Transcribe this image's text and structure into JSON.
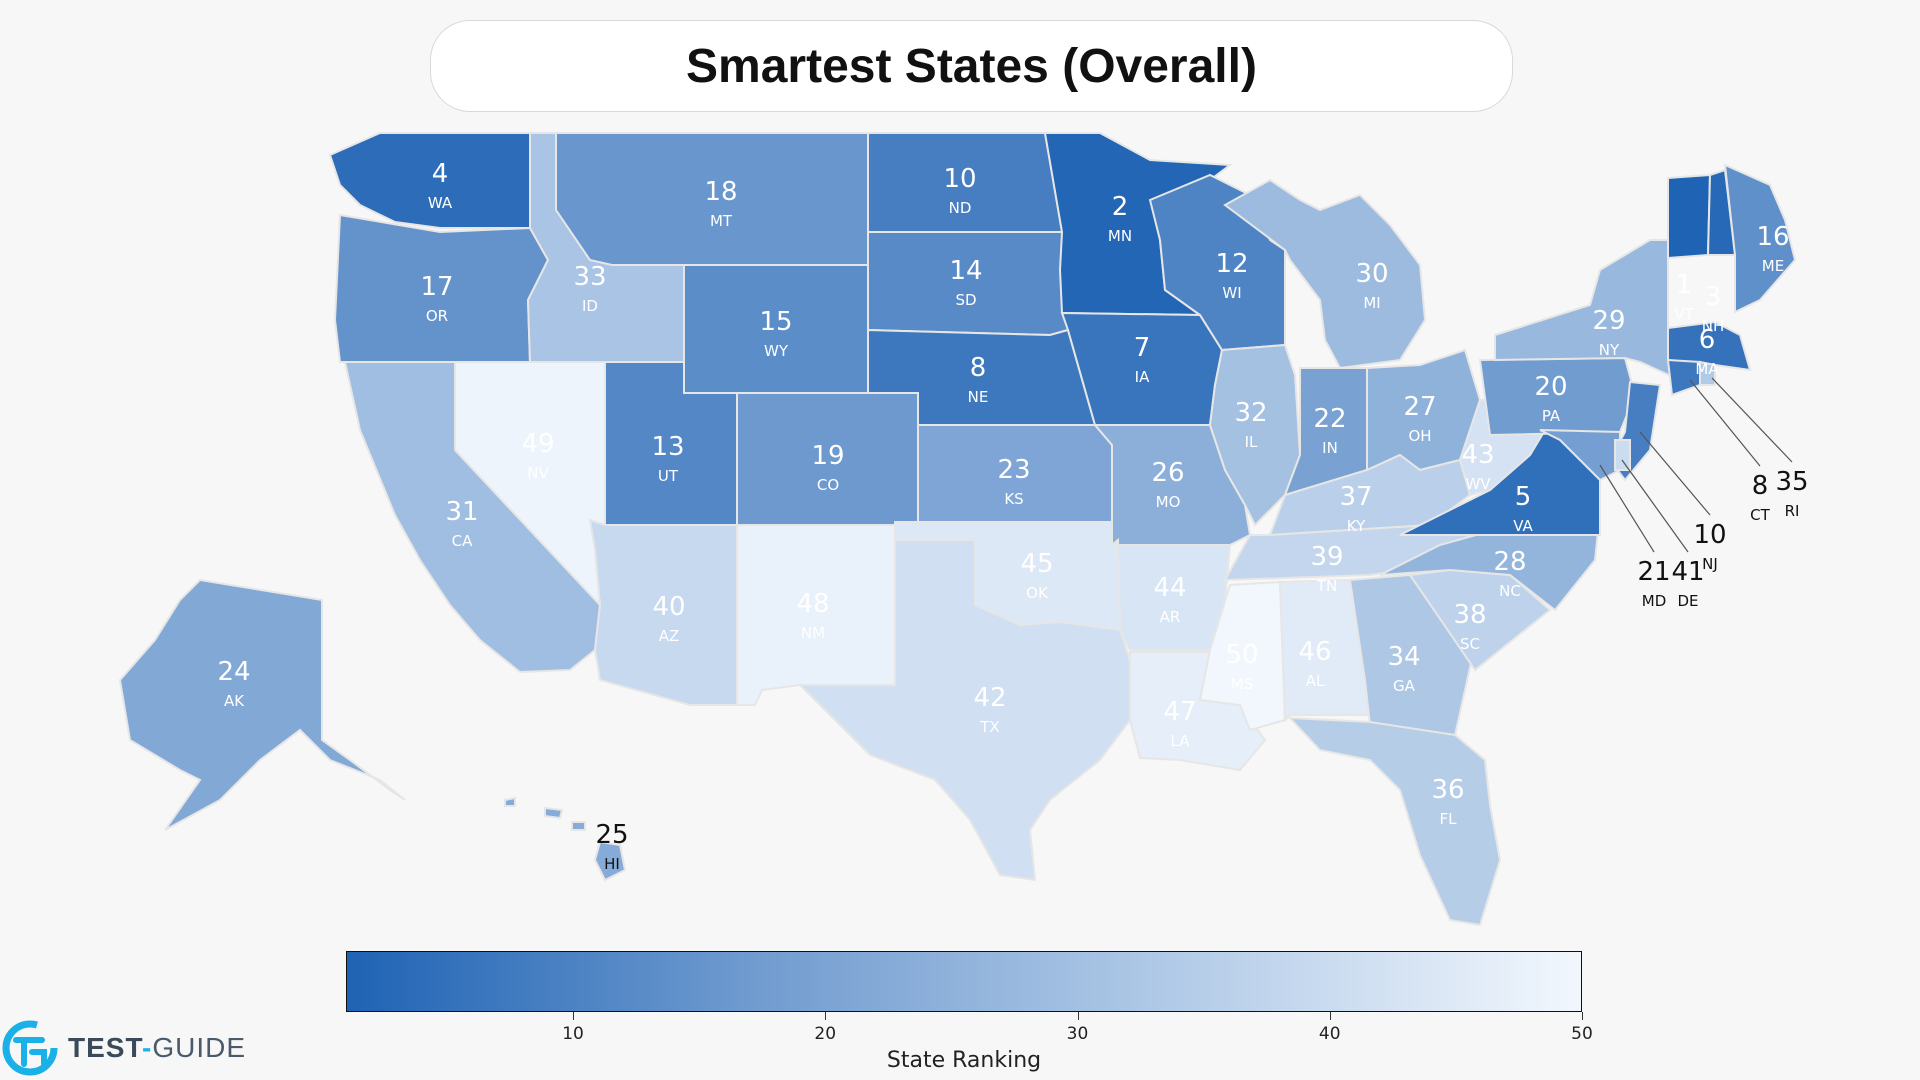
{
  "title": "Smartest States (Overall)",
  "colorbar": {
    "label": "State Ranking",
    "ticks": [
      "10",
      "20",
      "30",
      "40",
      "50"
    ],
    "range": [
      1,
      50
    ],
    "color_dark": "#1f63b4",
    "color_light": "#f2f7fd"
  },
  "logo": {
    "text_test": "TEST",
    "text_dash": "-",
    "text_guide": "GUIDE"
  },
  "states": [
    {
      "abbr": "WA",
      "rank": 4
    },
    {
      "abbr": "OR",
      "rank": 17
    },
    {
      "abbr": "CA",
      "rank": 31
    },
    {
      "abbr": "ID",
      "rank": 33
    },
    {
      "abbr": "NV",
      "rank": 49
    },
    {
      "abbr": "MT",
      "rank": 18
    },
    {
      "abbr": "WY",
      "rank": 15
    },
    {
      "abbr": "UT",
      "rank": 13
    },
    {
      "abbr": "AZ",
      "rank": 40
    },
    {
      "abbr": "CO",
      "rank": 19
    },
    {
      "abbr": "NM",
      "rank": 48
    },
    {
      "abbr": "ND",
      "rank": 10
    },
    {
      "abbr": "SD",
      "rank": 14
    },
    {
      "abbr": "NE",
      "rank": 8
    },
    {
      "abbr": "KS",
      "rank": 23
    },
    {
      "abbr": "OK",
      "rank": 45
    },
    {
      "abbr": "TX",
      "rank": 42
    },
    {
      "abbr": "MN",
      "rank": 2
    },
    {
      "abbr": "IA",
      "rank": 7
    },
    {
      "abbr": "MO",
      "rank": 26
    },
    {
      "abbr": "AR",
      "rank": 44
    },
    {
      "abbr": "LA",
      "rank": 47
    },
    {
      "abbr": "WI",
      "rank": 12
    },
    {
      "abbr": "IL",
      "rank": 32
    },
    {
      "abbr": "MI",
      "rank": 30
    },
    {
      "abbr": "IN",
      "rank": 22
    },
    {
      "abbr": "OH",
      "rank": 27
    },
    {
      "abbr": "KY",
      "rank": 37
    },
    {
      "abbr": "TN",
      "rank": 39
    },
    {
      "abbr": "MS",
      "rank": 50
    },
    {
      "abbr": "AL",
      "rank": 46
    },
    {
      "abbr": "GA",
      "rank": 34
    },
    {
      "abbr": "FL",
      "rank": 36
    },
    {
      "abbr": "SC",
      "rank": 38
    },
    {
      "abbr": "NC",
      "rank": 28
    },
    {
      "abbr": "VA",
      "rank": 5
    },
    {
      "abbr": "WV",
      "rank": 43
    },
    {
      "abbr": "PA",
      "rank": 20
    },
    {
      "abbr": "NY",
      "rank": 29
    },
    {
      "abbr": "VT",
      "rank": 1
    },
    {
      "abbr": "NH",
      "rank": 3
    },
    {
      "abbr": "ME",
      "rank": 16
    },
    {
      "abbr": "MA",
      "rank": 6
    },
    {
      "abbr": "CT",
      "rank": 8
    },
    {
      "abbr": "RI",
      "rank": 35
    },
    {
      "abbr": "NJ",
      "rank": 10
    },
    {
      "abbr": "MD",
      "rank": 21
    },
    {
      "abbr": "DE",
      "rank": 41
    },
    {
      "abbr": "AK",
      "rank": 24
    },
    {
      "abbr": "HI",
      "rank": 25
    }
  ]
}
